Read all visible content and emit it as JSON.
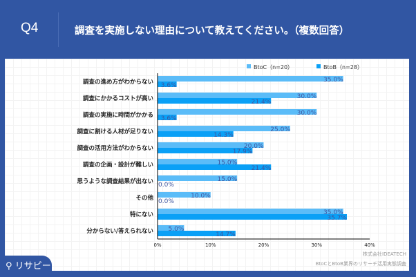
{
  "header": {
    "q": "Q4",
    "title": "調査を実施しない理由について教えてください。（複数回答）"
  },
  "logo": "リサピー",
  "source": [
    "株式会社IDEATECH",
    "BtoCとBtoB業界のリサーチ活用実態調査"
  ],
  "chart_data": {
    "type": "bar",
    "orientation": "horizontal",
    "categories": [
      "調査の進め方がわからない",
      "調査にかかるコストが高い",
      "調査の実施に時間がかかる",
      "調査に割ける人材が足りない",
      "調査の活用方法がわからない",
      "調査の企画・設計が難しい",
      "思うような調査結果が出ない",
      "その他",
      "特にない",
      "分からない/答えられない"
    ],
    "series": [
      {
        "name": "BtoC（n=20）",
        "color": "#5bbcf8",
        "values": [
          35.0,
          30.0,
          30.0,
          25.0,
          20.0,
          15.0,
          15.0,
          10.0,
          35.0,
          5.0
        ]
      },
      {
        "name": "BtoB（n=28）",
        "color": "#0aa0f6",
        "values": [
          3.6,
          21.4,
          3.6,
          14.3,
          17.9,
          21.4,
          0.0,
          0.0,
          35.7,
          14.7
        ]
      }
    ],
    "xlim": [
      0,
      40
    ],
    "ticks": [
      "0%",
      "10%",
      "20%",
      "30%",
      "40%"
    ],
    "legend": "top-right",
    "label_color": "#3d55a0"
  }
}
